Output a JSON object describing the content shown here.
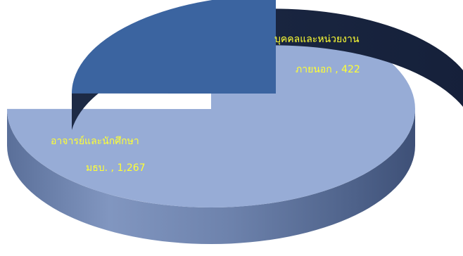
{
  "chart_data": {
    "type": "pie",
    "style": "3d-exploded",
    "title": "",
    "slices": [
      {
        "name": "อาจารย์และนักศึกษา",
        "value": 1267,
        "label_line1": "อาจารย์และนักศึกษา",
        "label_line2": "มธบ. , 1,267",
        "color": "#97acd6",
        "exploded": false
      },
      {
        "name": "บุคคลและหน่วยงานภายนอก",
        "value": 422,
        "label_line1": "บุคคลและหน่วยงาน",
        "label_line2": "ภายนอก  , 422",
        "color": "#3b64a0",
        "exploded": true
      }
    ],
    "label_color": "#ffff33",
    "legend": "none"
  }
}
